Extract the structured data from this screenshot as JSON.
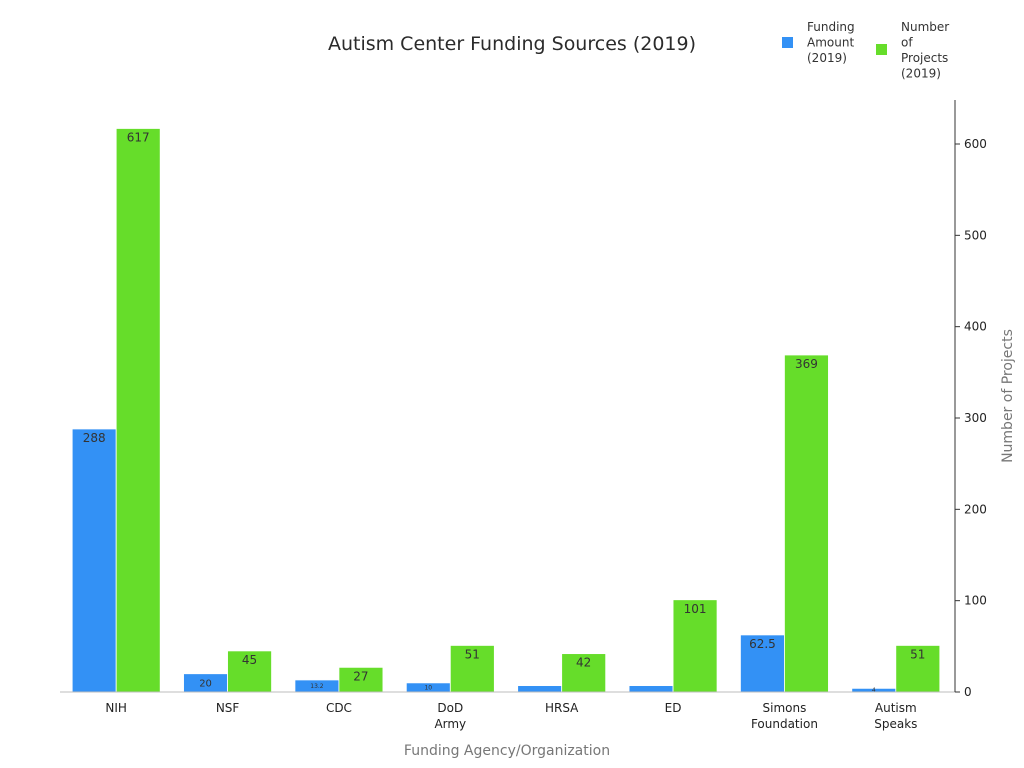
{
  "chart_data": {
    "type": "bar",
    "title": "Autism Center Funding Sources (2019)",
    "xlabel": "Funding Agency/Organization",
    "ylabel_right": "Number of Projects",
    "categories": [
      "NIH",
      "NSF",
      "CDC",
      "DoD Army",
      "HRSA",
      "ED",
      "Simons Foundation",
      "Autism Speaks"
    ],
    "category_lines": [
      [
        "NIH"
      ],
      [
        "NSF"
      ],
      [
        "CDC"
      ],
      [
        "DoD",
        "Army"
      ],
      [
        "HRSA"
      ],
      [
        "ED"
      ],
      [
        "Simons",
        "Foundation"
      ],
      [
        "Autism",
        "Speaks"
      ]
    ],
    "series": [
      {
        "name": "Funding Amount (2019)",
        "legend_lines": [
          "Funding",
          "Amount",
          "(2019)"
        ],
        "color": "#3391f5",
        "values": [
          288,
          20,
          13.2,
          10,
          7,
          7,
          62.5,
          4
        ],
        "labels": [
          "288",
          "20",
          "13.2",
          "10",
          "",
          "",
          "62.5",
          "4"
        ]
      },
      {
        "name": "Number of Projects (2019)",
        "legend_lines": [
          "Number",
          "of",
          "Projects",
          "(2019)"
        ],
        "color": "#66dd2a",
        "values": [
          617,
          45,
          27,
          51,
          42,
          101,
          369,
          51
        ],
        "labels": [
          "617",
          "45",
          "27",
          "51",
          "42",
          "101",
          "369",
          "51"
        ]
      }
    ],
    "ylim": [
      0,
      650
    ],
    "yticks": [
      0,
      100,
      200,
      300,
      400,
      500,
      600
    ],
    "y_axis_side": "right",
    "grid": false,
    "legend_position": "top-right"
  }
}
